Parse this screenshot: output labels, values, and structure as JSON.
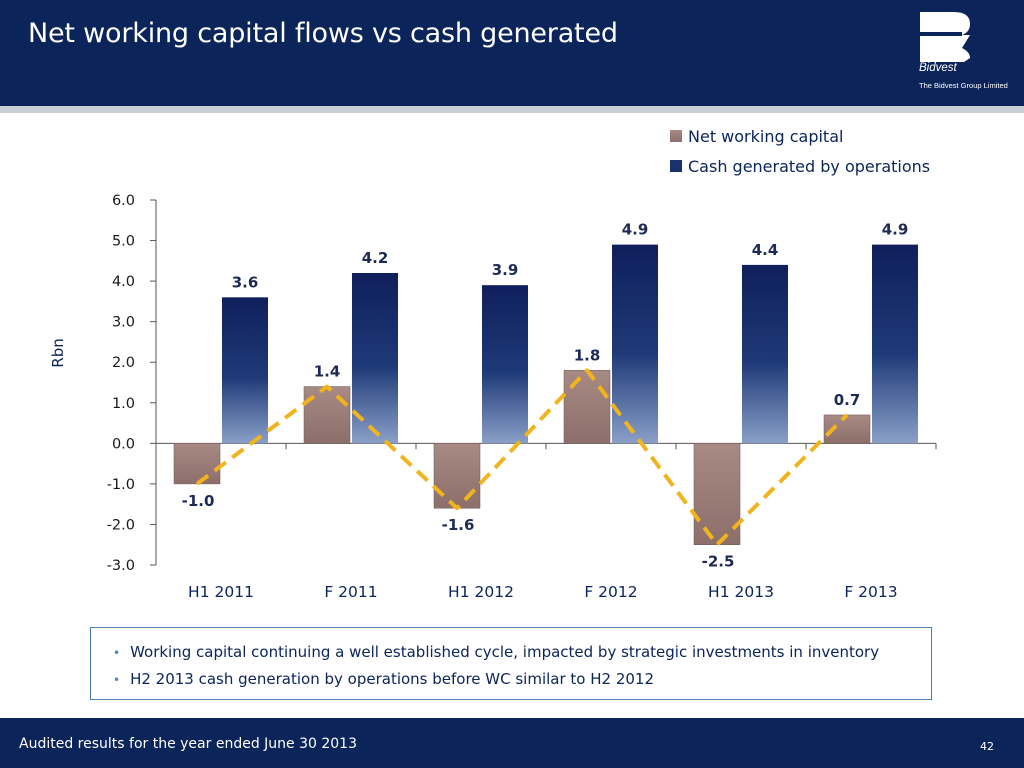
{
  "slide": {
    "title": "Net working capital flows vs cash generated",
    "logo_name": "Bidvest",
    "logo_sub": "The Bidvest Group Limited",
    "bullets": [
      "Working capital continuing a well established cycle, impacted by strategic investments in inventory",
      "H2 2013 cash generation by operations before WC similar to H2 2012"
    ],
    "footer": "Audited results for the year ended June 30 2013",
    "page_number": "42"
  },
  "colors": {
    "header": "#0b2459",
    "nwc": "#9e7e7a",
    "cash": "#1c3270",
    "trend": "#f2b41c"
  },
  "chart_data": {
    "type": "bar",
    "title": "",
    "ylabel": "Rbn",
    "xlabel": "",
    "ylim": [
      -3.0,
      6.0
    ],
    "yticks": [
      "6.0",
      "5.0",
      "4.0",
      "3.0",
      "2.0",
      "1.0",
      "0.0",
      "-1.0",
      "-2.0",
      "-3.0"
    ],
    "categories": [
      "H1 2011",
      "F 2011",
      "H1 2012",
      "F 2012",
      "H1 2013",
      "F 2013"
    ],
    "series": [
      {
        "name": "Net working capital",
        "values": [
          -1.0,
          1.4,
          -1.6,
          1.8,
          -2.5,
          0.7
        ],
        "labels": [
          "-1.0",
          "1.4",
          "-1.6",
          "1.8",
          "-2.5",
          "0.7"
        ]
      },
      {
        "name": "Cash generated by operations",
        "values": [
          3.6,
          4.2,
          3.9,
          4.9,
          4.4,
          4.9
        ],
        "labels": [
          "3.6",
          "4.2",
          "3.9",
          "4.9",
          "4.4",
          "4.9"
        ]
      }
    ],
    "trend_line": "Net working capital",
    "legend": "top-right"
  }
}
